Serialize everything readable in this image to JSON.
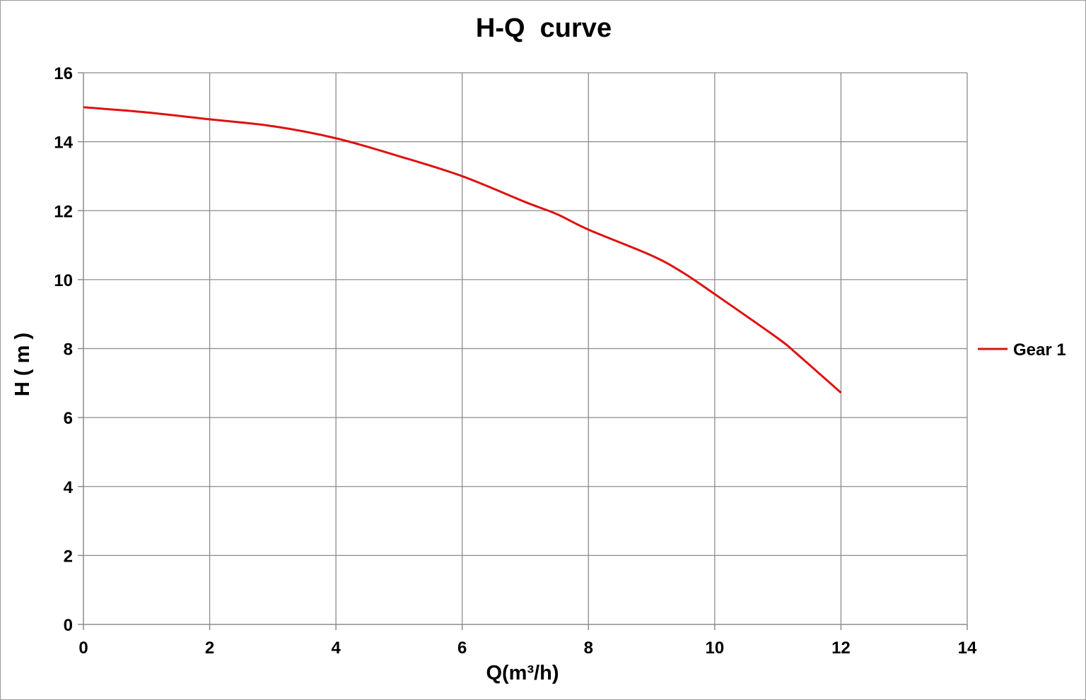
{
  "chart_data": {
    "type": "line",
    "title": "H-Q  curve",
    "xlabel": "Q(m³/h)",
    "ylabel": "H ( m )",
    "xlim": [
      0,
      14
    ],
    "ylim": [
      0,
      16
    ],
    "xticks": [
      "0",
      "2",
      "4",
      "6",
      "8",
      "10",
      "12",
      "14"
    ],
    "yticks": [
      "0",
      "2",
      "4",
      "6",
      "8",
      "10",
      "12",
      "14",
      "16"
    ],
    "grid": true,
    "legend_position": "right",
    "series": [
      {
        "name": "Gear 1",
        "color": "#e01010",
        "x": [
          0,
          1,
          2,
          3,
          4,
          5,
          6,
          7,
          7.5,
          8,
          9,
          9.5,
          10,
          11,
          11.3,
          12
        ],
        "y": [
          15.0,
          14.85,
          14.65,
          14.45,
          14.1,
          13.58,
          13.0,
          12.25,
          11.9,
          11.45,
          10.7,
          10.2,
          9.58,
          8.3,
          7.85,
          6.72
        ]
      }
    ]
  }
}
